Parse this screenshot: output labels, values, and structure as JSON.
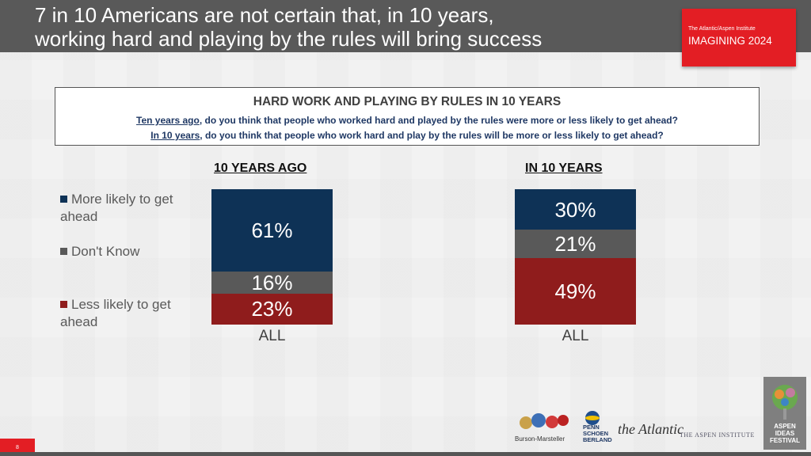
{
  "header": {
    "title": "7 in 10 Americans are not certain that, in 10 years,\nworking hard and playing by the rules will bring success",
    "badge_small": "The Atlantic/Aspen Institute",
    "badge_big": "IMAGINING 2024"
  },
  "question": {
    "title": "HARD WORK AND PLAYING BY RULES IN 10 YEARS",
    "line1_lead": "Ten years ago",
    "line1_rest": ", do you think that people who worked hard and played by the rules were more or less likely to get ahead?",
    "line2_lead": "In 10 years",
    "line2_rest": ", do you think that people who work hard and play by the rules will be more or less likely to get ahead?"
  },
  "legend": [
    {
      "label": "More likely to get\nahead",
      "color": "#0e3256"
    },
    {
      "label": "Don't Know",
      "color": "#595959"
    },
    {
      "label": "Less likely to get\nahead",
      "color": "#8f1c1c"
    }
  ],
  "chart_data": {
    "type": "bar",
    "stacked": true,
    "panels": [
      {
        "heading": "10 YEARS AGO",
        "category": "ALL",
        "series": [
          {
            "name": "More likely to get ahead",
            "value": 61,
            "label": "61%",
            "color": "#0e3256"
          },
          {
            "name": "Don't Know",
            "value": 16,
            "label": "16%",
            "color": "#595959"
          },
          {
            "name": "Less likely to get ahead",
            "value": 23,
            "label": "23%",
            "color": "#8f1c1c"
          }
        ]
      },
      {
        "heading": "IN 10 YEARS",
        "category": "ALL",
        "series": [
          {
            "name": "More likely to get ahead",
            "value": 30,
            "label": "30%",
            "color": "#0e3256"
          },
          {
            "name": "Don't Know",
            "value": 21,
            "label": "21%",
            "color": "#595959"
          },
          {
            "name": "Less likely to get ahead",
            "value": 49,
            "label": "49%",
            "color": "#8f1c1c"
          }
        ]
      }
    ]
  },
  "footer": {
    "logo_bm": "Burson-Marsteller",
    "logo_psb": "PENN\nSCHOEN\nBERLAND",
    "logo_atlantic": "the Atlantic",
    "logo_aspen": "THE ASPEN INSTITUTE",
    "ideas": "ASPEN\nIDEAS\nFESTIVAL",
    "page_number": "8"
  }
}
